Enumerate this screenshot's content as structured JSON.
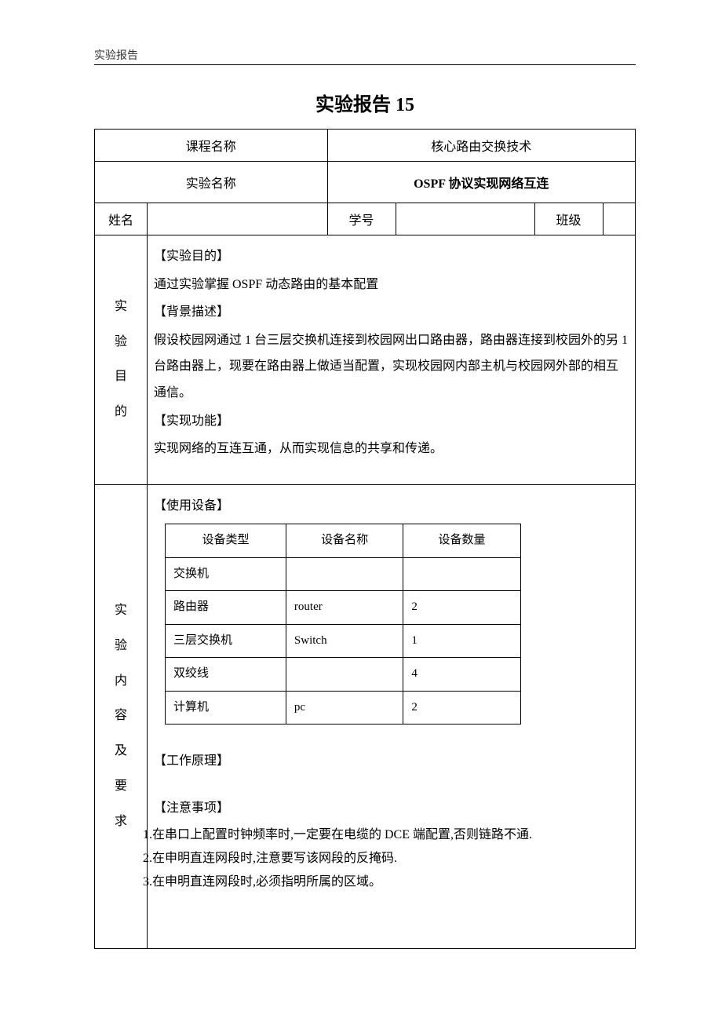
{
  "header": "实验报告",
  "title": "实验报告 15",
  "rows": {
    "course_label": "课程名称",
    "course_value": "核心路由交换技术",
    "exp_label": "实验名称",
    "exp_value": "OSPF 协议实现网络互连",
    "name_label": "姓名",
    "name_value": "",
    "id_label": "学号",
    "id_value": "",
    "class_label": "班级",
    "class_value": ""
  },
  "purpose": {
    "vert_label": "实验目的",
    "s1_title": "【实验目的】",
    "s1_text": "通过实验掌握 OSPF 动态路由的基本配置",
    "s2_title": "【背景描述】",
    "s2_text": "假设校园网通过 1 台三层交换机连接到校园网出口路由器，路由器连接到校园外的另 1 台路由器上，现要在路由器上做适当配置，实现校园网内部主机与校园网外部的相互通信。",
    "s3_title": "【实现功能】",
    "s3_text": "实现网络的互连互通，从而实现信息的共享和传递。"
  },
  "content": {
    "vert_label": "实验内容及要求",
    "equip_title": "【使用设备】",
    "equip_table": {
      "columns": [
        "设备类型",
        "设备名称",
        "设备数量"
      ],
      "rows": [
        [
          "交换机",
          "",
          ""
        ],
        [
          "路由器",
          "router",
          "2"
        ],
        [
          "三层交换机",
          "Switch",
          "1"
        ],
        [
          "双绞线",
          "",
          "4"
        ],
        [
          "计算机",
          "pc",
          "2"
        ]
      ]
    },
    "principle_title": "【工作原理】",
    "notes_title": "【注意事项】",
    "notes": [
      "1.在串口上配置时钟频率时,一定要在电缆的 DCE 端配置,否则链路不通.",
      "2.在申明直连网段时,注意要写该网段的反掩码.",
      "3.在申明直连网段时,必须指明所属的区域。"
    ]
  }
}
